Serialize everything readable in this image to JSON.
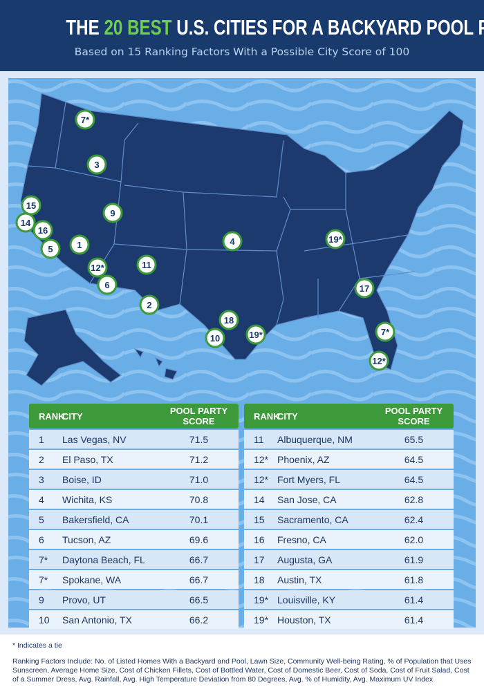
{
  "header": {
    "title": [
      "THE",
      "20 BEST",
      "U.S. CITIES FOR A BACKYARD POOL PARTY"
    ],
    "subtitle": "Based on 15 Ranking Factors With a Possible City Score of 100"
  },
  "map": {
    "markers": [
      "7*",
      "3",
      "15",
      "9",
      "14",
      "16",
      "5",
      "1",
      "12*",
      "11",
      "6",
      "2",
      "4",
      "19*",
      "17",
      "18",
      "10",
      "19*",
      "7*",
      "12*"
    ]
  },
  "tables": [
    {
      "columns": [
        "RANK",
        "CITY",
        "POOL PARTY SCORE"
      ],
      "rows": [
        [
          "1",
          "Las Vegas, NV",
          "71.5"
        ],
        [
          "2",
          "El Paso, TX",
          "71.2"
        ],
        [
          "3",
          "Boise, ID",
          "71.0"
        ],
        [
          "4",
          "Wichita, KS",
          "70.8"
        ],
        [
          "5",
          "Bakersfield, CA",
          "70.1"
        ],
        [
          "6",
          "Tucson, AZ",
          "69.6"
        ],
        [
          "7*",
          "Daytona Beach, FL",
          "66.7"
        ],
        [
          "7*",
          "Spokane, WA",
          "66.7"
        ],
        [
          "9",
          "Provo, UT",
          "66.5"
        ],
        [
          "10",
          "San Antonio, TX",
          "66.2"
        ]
      ]
    },
    {
      "columns": [
        "RANK",
        "CITY",
        "POOL PARTY SCORE"
      ],
      "rows": [
        [
          "11",
          "Albuquerque, NM",
          "65.5"
        ],
        [
          "12*",
          "Phoenix, AZ",
          "64.5"
        ],
        [
          "12*",
          "Fort Myers, FL",
          "64.5"
        ],
        [
          "14",
          "San Jose, CA",
          "62.8"
        ],
        [
          "15",
          "Sacramento, CA",
          "62.4"
        ],
        [
          "16",
          "Fresno, CA",
          "62.0"
        ],
        [
          "17",
          "Augusta, GA",
          "61.9"
        ],
        [
          "18",
          "Austin, TX",
          "61.8"
        ],
        [
          "19*",
          "Louisville, KY",
          "61.4"
        ],
        [
          "19*",
          "Houston, TX",
          "61.4"
        ]
      ]
    }
  ],
  "footnotes": {
    "tie": "* Indicates a tie",
    "factors": "Ranking Factors Include: No. of Listed Homes With a Backyard and Pool, Lawn Size, Community Well-being Rating, % of Population that Uses Sunscreen, Average Home Size, Cost of Chicken Fillets, Cost of Bottled Water, Cost of Domestic Beer, Cost of Soda, Cost of Fruit Salad, Cost of a Summer Dress, Avg. Rainfall, Avg. High Temperature Deviation from 80 Degrees, Avg. % of Humidity, Avg. Maximum UV Index"
  }
}
